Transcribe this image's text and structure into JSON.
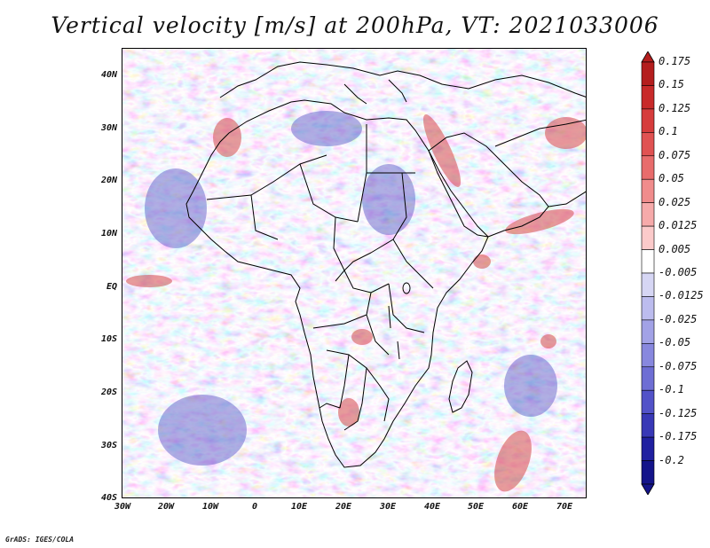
{
  "title": "Vertical velocity [m/s] at 200hPa, VT: 2021033006",
  "lat_labels": [
    "40N",
    "30N",
    "20N",
    "10N",
    "EQ",
    "10S",
    "20S",
    "30S",
    "40S"
  ],
  "lon_labels": [
    "30W",
    "20W",
    "10W",
    "0",
    "10E",
    "20E",
    "30E",
    "40E",
    "50E",
    "60E",
    "70E"
  ],
  "colorbar": {
    "levels": [
      "0.175",
      "0.15",
      "0.125",
      "0.1",
      "0.075",
      "0.05",
      "0.025",
      "0.0125",
      "0.005",
      "-0.005",
      "-0.0125",
      "-0.025",
      "-0.05",
      "-0.075",
      "-0.1",
      "-0.125",
      "-0.175",
      "-0.2"
    ],
    "colors": [
      "#b41e1e",
      "#c82a2a",
      "#d63c3c",
      "#e05252",
      "#e86c6c",
      "#f08c8c",
      "#f6aaaa",
      "#fbcaca",
      "#ffffff",
      "#d6d6f4",
      "#bcbcee",
      "#a2a2e6",
      "#8888de",
      "#6e6ed4",
      "#5252c8",
      "#3838b6",
      "#2020a0",
      "#14148a"
    ]
  },
  "credit": "GrADS: IGES/COLA"
}
